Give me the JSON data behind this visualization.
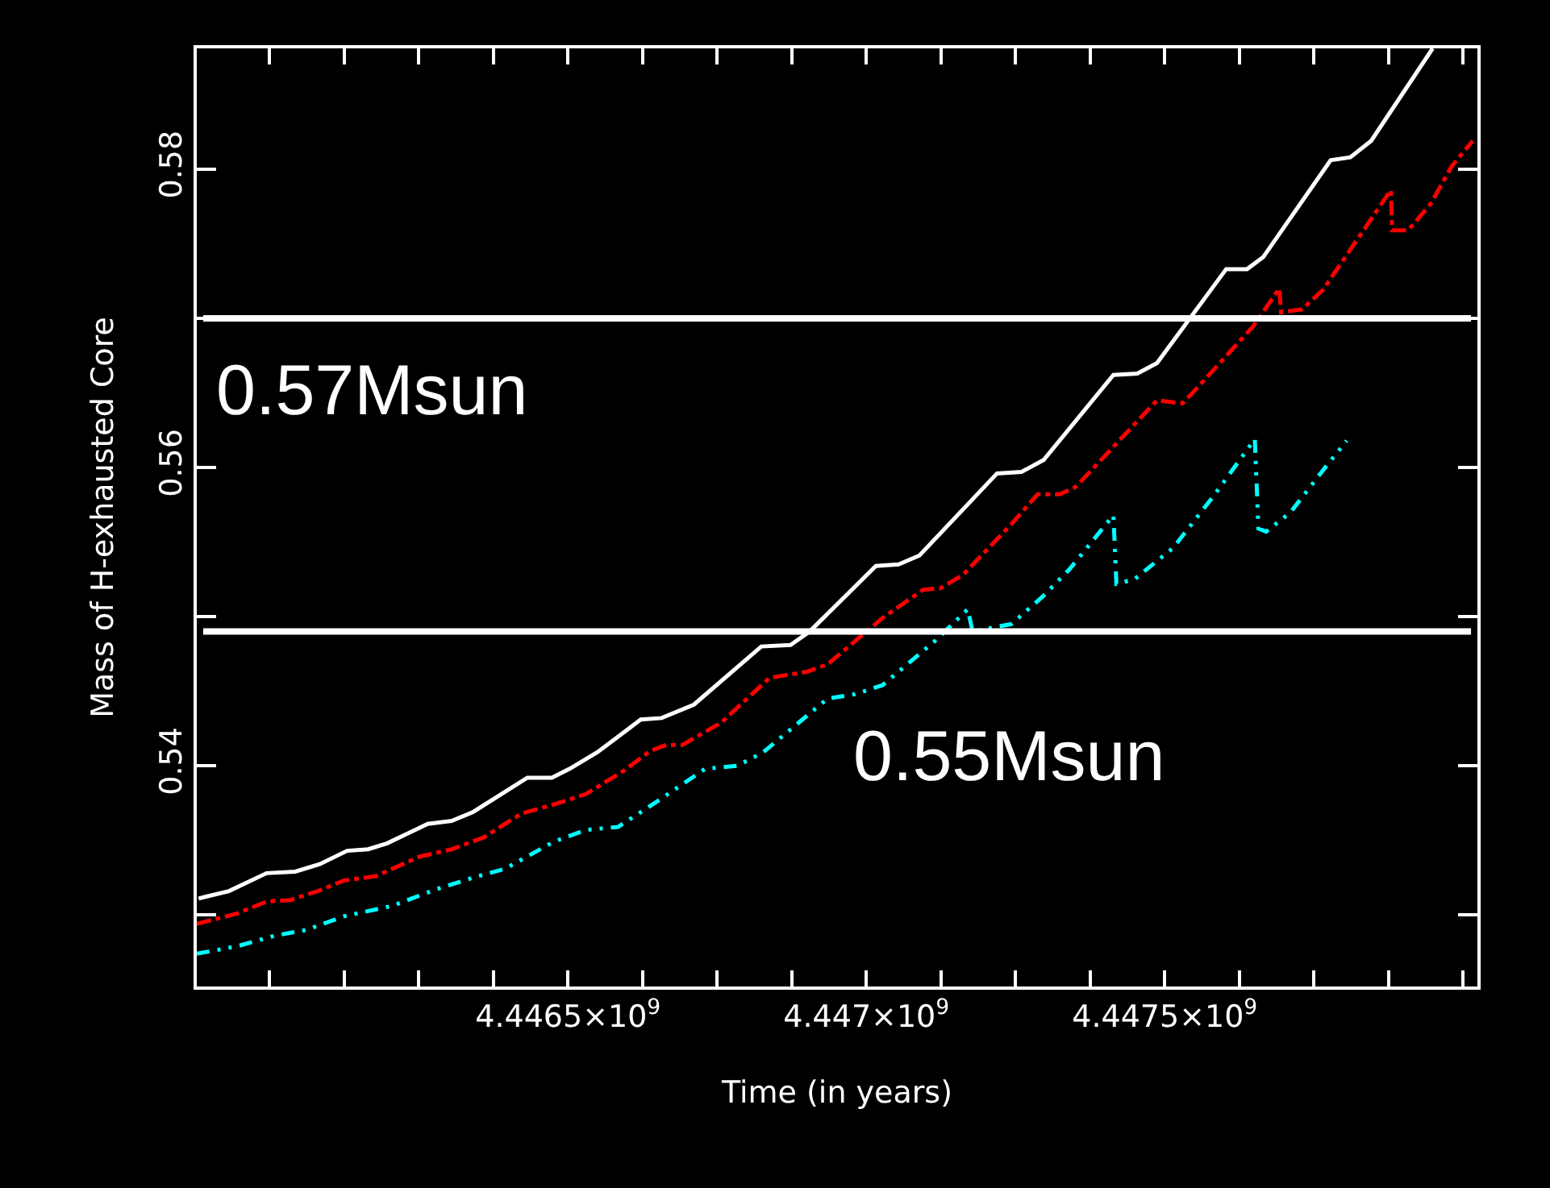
{
  "chart_data": {
    "type": "line",
    "xlabel": "Time (in years)",
    "ylabel": "Mass of H-exhausted Core",
    "xlim": [
      4445878000,
      4448024000
    ],
    "ylim": [
      0.5252,
      0.5881
    ],
    "xticks": [
      {
        "value": 4446000000,
        "label": null
      },
      {
        "value": 4446125000,
        "label": null
      },
      {
        "value": 4446250000,
        "label": null
      },
      {
        "value": 4446375000,
        "label": null
      },
      {
        "value": 4446500000,
        "label": "4.4465×10$^{9}$"
      },
      {
        "value": 4446625000,
        "label": null
      },
      {
        "value": 4446750000,
        "label": null
      },
      {
        "value": 4446875000,
        "label": null
      },
      {
        "value": 4447000000,
        "label": "4.447×10$^{9}$"
      },
      {
        "value": 4447125000,
        "label": null
      },
      {
        "value": 4447250000,
        "label": null
      },
      {
        "value": 4447375000,
        "label": null
      },
      {
        "value": 4447500000,
        "label": "4.4475×10$^{9}$"
      },
      {
        "value": 4447625000,
        "label": null
      },
      {
        "value": 4447750000,
        "label": null
      },
      {
        "value": 4447875000,
        "label": null
      },
      {
        "value": 4448000000,
        "label": null
      }
    ],
    "yticks": [
      {
        "value": 0.53,
        "label": null
      },
      0.54,
      {
        "value": 0.55,
        "label": null
      },
      0.56,
      {
        "value": 0.57,
        "label": null
      },
      0.58
    ],
    "grid": false,
    "marker": "none",
    "ref_lines": [
      {
        "axis": "y",
        "value": 0.57,
        "label": "0.57Msun",
        "color": "#ffffff"
      },
      {
        "axis": "y",
        "value": 0.549,
        "label": "0.55Msun",
        "color": "#ffffff"
      }
    ],
    "series": [
      {
        "color": "#ffffff",
        "line_style": "solid",
        "x": [
          4445881000,
          4445932000,
          4445995000,
          4446043000,
          4446084000,
          4446130000,
          4446165000,
          4446197000,
          4446265000,
          4446305000,
          4446341000,
          4446432000,
          4446473000,
          4446503000,
          4446549000,
          4446622000,
          4446657000,
          4446711000,
          4446824000,
          4446873000,
          4446905000,
          4447016000,
          4447054000,
          4447089000,
          4447219000,
          4447260000,
          4447297000,
          4447414000,
          4447454000,
          4447487000,
          4447603000,
          4447638000,
          4447665000,
          4447778000,
          4447811000,
          4447846000,
          4447949000
        ],
        "values": [
          0.5311,
          0.5316,
          0.5328,
          0.5329,
          0.5334,
          0.5343,
          0.5344,
          0.5348,
          0.5361,
          0.5363,
          0.5369,
          0.5392,
          0.5392,
          0.5398,
          0.5409,
          0.5431,
          0.5432,
          0.5441,
          0.548,
          0.5481,
          0.549,
          0.5534,
          0.5535,
          0.5541,
          0.5596,
          0.5597,
          0.5605,
          0.5662,
          0.5663,
          0.567,
          0.5733,
          0.5733,
          0.5741,
          0.5806,
          0.5808,
          0.5819,
          0.5881
        ]
      },
      {
        "color": "#ff0000",
        "line_style": "dashdot",
        "x": [
          4445878000,
          4445946000,
          4445995000,
          4446035000,
          4446081000,
          4446124000,
          4446178000,
          4446251000,
          4446305000,
          4446359000,
          4446422000,
          4446476000,
          4446530000,
          4446595000,
          4446638000,
          4446665000,
          4446692000,
          4446757000,
          4446838000,
          4446900000,
          4446935000,
          4447027000,
          4447095000,
          4447124000,
          4447162000,
          4447243000,
          4447287000,
          4447324000,
          4447351000,
          4447487000,
          4447530000,
          4447549000,
          4447649000,
          4447692000,
          4447695000,
          4447730000,
          4447765000,
          4447879000,
          4447881000,
          4447908000,
          4447946000,
          4447981000,
          4448016000
        ],
        "values": [
          0.5294,
          0.5301,
          0.5309,
          0.531,
          0.5316,
          0.5323,
          0.5326,
          0.5339,
          0.5344,
          0.5352,
          0.5368,
          0.5374,
          0.5381,
          0.5397,
          0.541,
          0.5414,
          0.5414,
          0.5429,
          0.5459,
          0.5463,
          0.5468,
          0.5499,
          0.5518,
          0.5519,
          0.5528,
          0.5562,
          0.5582,
          0.5582,
          0.5587,
          0.5645,
          0.5643,
          0.5651,
          0.5695,
          0.572,
          0.5704,
          0.5706,
          0.5719,
          0.5786,
          0.5759,
          0.5759,
          0.5777,
          0.5802,
          0.5819
        ]
      },
      {
        "color": "#00ffff",
        "line_style": "dashdotdot",
        "x": [
          4445878000,
          4445946000,
          4446008000,
          4446062000,
          4446124000,
          4446205000,
          4446278000,
          4446341000,
          4446395000,
          4446476000,
          4446530000,
          4446584000,
          4446649000,
          4446730000,
          4446784000,
          4446827000,
          4446935000,
          4446981000,
          4447027000,
          4447116000,
          4447170000,
          4447178000,
          4447243000,
          4447297000,
          4447341000,
          4447414000,
          4447419000,
          4447449000,
          4447514000,
          4447584000,
          4447651000,
          4447657000,
          4447670000,
          4447711000,
          4447765000,
          4447805000
        ],
        "values": [
          0.5274,
          0.5279,
          0.5286,
          0.529,
          0.5299,
          0.5306,
          0.5317,
          0.5325,
          0.5331,
          0.5349,
          0.5357,
          0.5359,
          0.5376,
          0.5398,
          0.54,
          0.5409,
          0.5445,
          0.5448,
          0.5454,
          0.5484,
          0.5505,
          0.549,
          0.5495,
          0.5514,
          0.5532,
          0.5568,
          0.5522,
          0.5525,
          0.5546,
          0.5582,
          0.5619,
          0.5559,
          0.5557,
          0.557,
          0.5598,
          0.5618
        ]
      }
    ]
  }
}
